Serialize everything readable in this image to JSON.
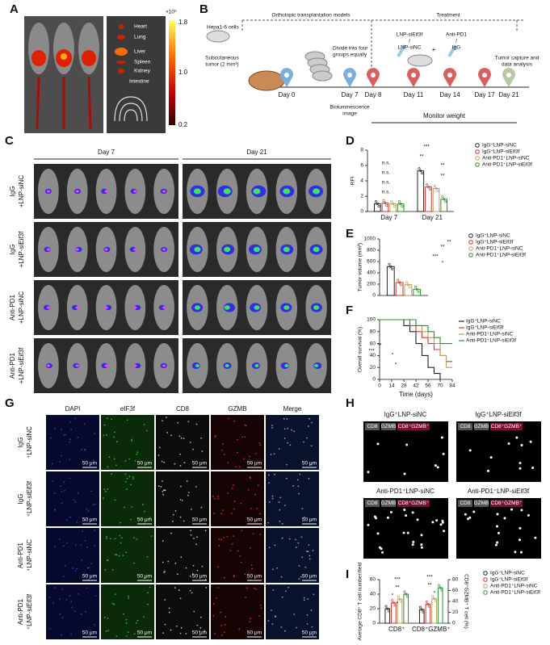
{
  "panel_labels": [
    "A",
    "B",
    "C",
    "D",
    "E",
    "F",
    "G",
    "H",
    "I"
  ],
  "panel_a": {
    "colorbar_exponent": "×10⁹",
    "colorbar_labels": [
      "1.8",
      "1.0",
      "0.2"
    ],
    "organs": [
      "Heart",
      "Lung",
      "Liver",
      "Spleen",
      "Kidney",
      "Intestine"
    ]
  },
  "panel_b": {
    "cells": "Hepa1-6 cells",
    "orthotopic": "Orthotopic transplantation models",
    "treatment": "Treatment",
    "subcutaneous": [
      "Subcutaneous",
      "tumor (2 mm³)"
    ],
    "divide": [
      "Divide into four",
      "groups equally"
    ],
    "lnp_eif3f": "LNP-siEif3f",
    "slash": "/",
    "lnp_nc": "LNP-siNC",
    "plus": "+",
    "anti_pd1": "Anti-PD1",
    "igg": "IgG",
    "capture": [
      "Tumor capture and",
      "data analysis"
    ],
    "days": [
      "Day 0",
      "Day 7",
      "Day 8",
      "Day 11",
      "Day 14",
      "Day 17",
      "Day 21"
    ],
    "bioluminescence": [
      "Bioluminescence",
      "image"
    ],
    "monitor": "Monitor weight"
  },
  "panel_c": {
    "days": [
      "Day 7",
      "Day 21"
    ],
    "rows": [
      [
        "IgG",
        "+LNP-siNC"
      ],
      [
        "IgG",
        "+LNP-siEif3f"
      ],
      [
        "Anti-PD1",
        "+LNP-siNC"
      ],
      [
        "Anti-PD1",
        "+LNP-siEif3f"
      ]
    ]
  },
  "panel_g": {
    "channels": [
      "DAPI",
      "eIF3f",
      "CD8",
      "GZMB",
      "Merge"
    ],
    "rows": [
      [
        "IgG",
        "⁺LNP-siNC"
      ],
      [
        "IgG",
        "⁺LNP-siEif3f"
      ],
      [
        "Anti-PD1",
        "⁺LNP-siNC"
      ],
      [
        "Anti-PD1",
        "⁺LNP-siEif3f"
      ]
    ],
    "scale_bar": "50 μm"
  },
  "panel_h": {
    "titles": [
      "IgG⁺LNP-siNC",
      "IgG⁺LNP-siEif3f",
      "Anti-PD1⁺LNP-siNC",
      "Anti-PD1⁺LNP-siEif3f"
    ],
    "tags": [
      "CD8",
      "GZMB",
      "CD8⁺GZMB⁺"
    ]
  },
  "chart_data": [
    {
      "type": "bar",
      "ylabel": "RFI",
      "categories": [
        "Day 7",
        "Day 21"
      ],
      "series": [
        {
          "name": "IgG⁺LNP-siNC",
          "color": "#222222",
          "values": [
            1,
            5.3
          ]
        },
        {
          "name": "IgG⁺LNP-siEif3f",
          "color": "#d03030",
          "values": [
            1.1,
            3.2
          ]
        },
        {
          "name": "Anti-PD1⁺LNP-siNC",
          "color": "#b8a060",
          "values": [
            1,
            3
          ]
        },
        {
          "name": "Anti-PD1⁺LNP-siEif3f",
          "color": "#2e8b2e",
          "values": [
            1,
            1.6
          ]
        }
      ],
      "ylim": [
        0,
        8
      ],
      "yticks": [
        0,
        2,
        4,
        6,
        8
      ],
      "annotations": [
        "n.s.",
        "n.s.",
        "n.s.",
        "n.s.",
        "***",
        "**",
        "**",
        "**"
      ]
    },
    {
      "type": "bar",
      "ylabel": "Tumor volume (mm³)",
      "categories": [
        null
      ],
      "series": [
        {
          "name": "IgG⁺LNP-siNC",
          "color": "#222222",
          "values": [
            510
          ]
        },
        {
          "name": "IgG⁺LNP-siEif3f",
          "color": "#d03030",
          "values": [
            230
          ]
        },
        {
          "name": "Anti-PD1⁺LNP-siNC",
          "color": "#b8a060",
          "values": [
            190
          ]
        },
        {
          "name": "Anti-PD1⁺LNP-siEif3f",
          "color": "#2e8b2e",
          "values": [
            110
          ]
        }
      ],
      "ylim": [
        0,
        1000
      ],
      "yticks": [
        0,
        200,
        400,
        600,
        800,
        1000
      ],
      "annotations": [
        "***",
        "**",
        "**",
        "*"
      ]
    },
    {
      "type": "line",
      "step": true,
      "xlabel": "Time (days)",
      "ylabel": "Overall survival (%)",
      "series": [
        {
          "name": "IgG⁺LNP-siNC",
          "color": "#222222",
          "x": [
            0,
            28,
            35,
            42,
            49,
            56,
            63,
            70
          ],
          "values": [
            100,
            90,
            80,
            60,
            40,
            20,
            10,
            0
          ]
        },
        {
          "name": "IgG⁺LNP-siEif3f",
          "color": "#d03030",
          "x": [
            0,
            35,
            42,
            49,
            56,
            63,
            70,
            77,
            84
          ],
          "values": [
            100,
            90,
            80,
            70,
            60,
            50,
            40,
            30,
            30
          ]
        },
        {
          "name": "Anti-PD1⁺LNP-siNC",
          "color": "#b8a060",
          "x": [
            0,
            42,
            49,
            56,
            63,
            70,
            77,
            84
          ],
          "values": [
            100,
            90,
            80,
            70,
            60,
            40,
            20,
            20
          ]
        },
        {
          "name": "Anti-PD1⁺LNP-siEif3f",
          "color": "#2e8b2e",
          "x": [
            0,
            42,
            56,
            63,
            70,
            84
          ],
          "values": [
            100,
            90,
            80,
            70,
            60,
            60
          ]
        }
      ],
      "xlim": [
        0,
        84
      ],
      "xticks": [
        0,
        14,
        28,
        42,
        56,
        70,
        84
      ],
      "ylim": [
        0,
        100
      ],
      "yticks": [
        0,
        20,
        40,
        60,
        80,
        100
      ],
      "annotations": [
        "***",
        "**",
        "*",
        "*"
      ]
    },
    {
      "type": "bar",
      "ylabel": "Average CD8⁺ T cell number/field",
      "y2label": "CD8⁺GZMB⁺ T cell (%)",
      "categories": [
        "CD8⁺",
        "CD8⁺GZMB⁺"
      ],
      "axis_per_category": [
        "y",
        "y2"
      ],
      "series": [
        {
          "name": "IgG⁺LNP-siNC",
          "color": "#222222",
          "values": [
            20,
            25
          ]
        },
        {
          "name": "IgG⁺LNP-siEif3f",
          "color": "#d03030",
          "values": [
            28,
            35
          ]
        },
        {
          "name": "Anti-PD1⁺LNP-siNC",
          "color": "#b8a060",
          "values": [
            33,
            45
          ]
        },
        {
          "name": "Anti-PD1⁺LNP-siEif3f",
          "color": "#2e8b2e",
          "values": [
            40,
            65
          ]
        }
      ],
      "ylim": [
        0,
        60
      ],
      "yticks": [
        0,
        20,
        40,
        60
      ],
      "y2lim": [
        0,
        80
      ],
      "y2ticks": [
        0,
        20,
        40,
        60,
        80
      ],
      "annotations": [
        "***",
        "**",
        "*",
        "*",
        "***",
        "**",
        "*"
      ]
    }
  ]
}
